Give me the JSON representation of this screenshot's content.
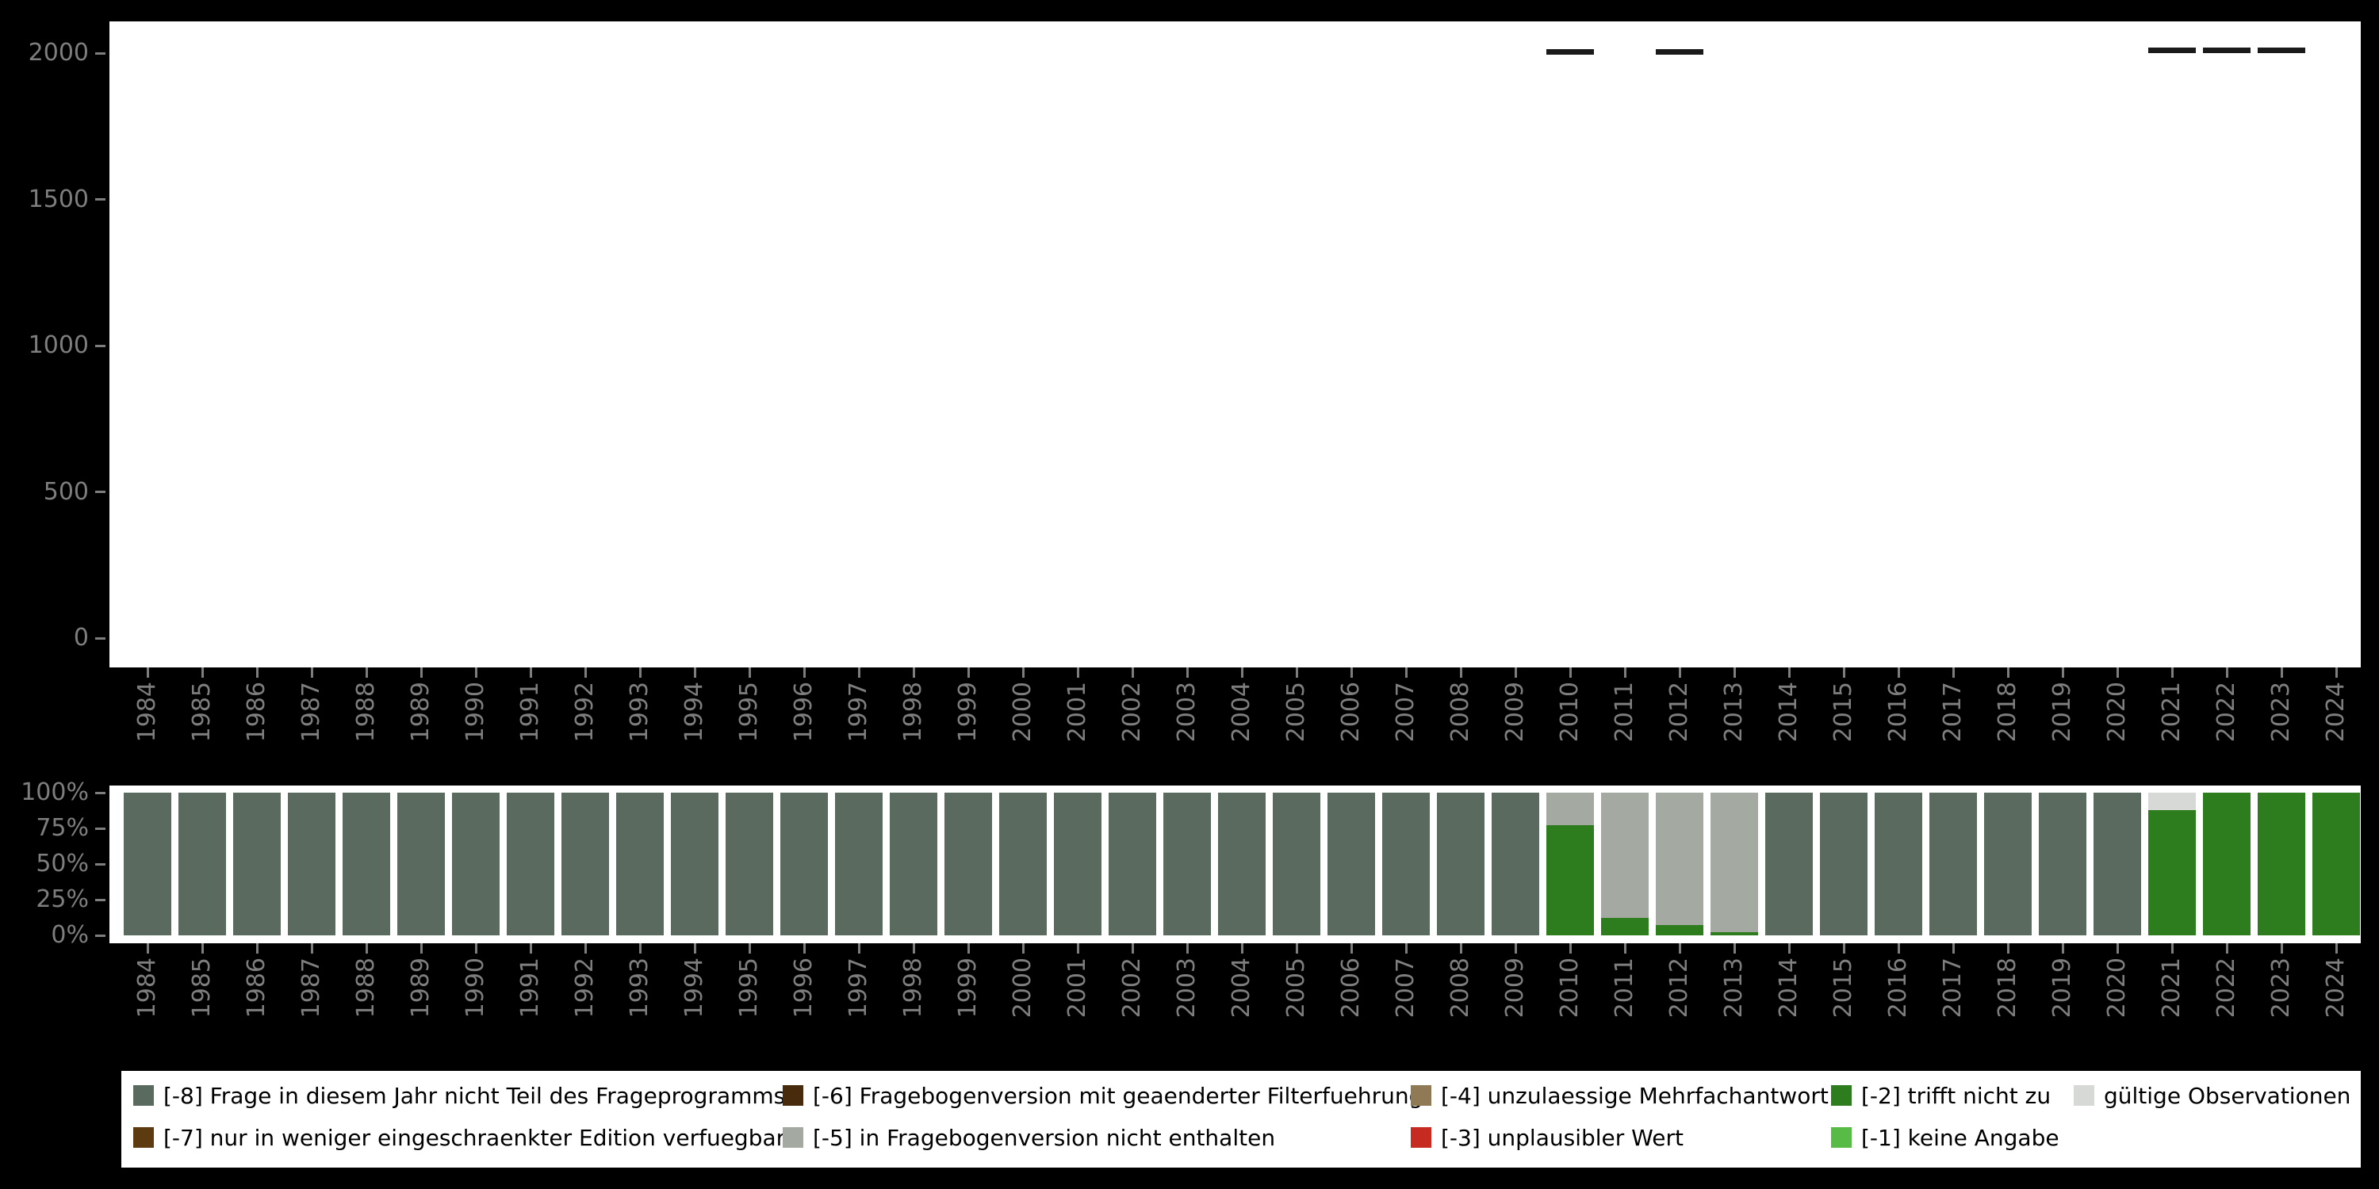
{
  "colors": {
    "background": "#000000",
    "panel": "#ffffff",
    "axis_text": "#7e7e7e",
    "tick": "#7e7e7e",
    "count_dash": "#1a1a1a",
    "legend_background": "#ffffff",
    "legend_text": "#000000"
  },
  "codes": {
    "m8": {
      "label": "[-8] Frage in diesem Jahr nicht Teil des Frageprogramms",
      "color": "#5b6a5f"
    },
    "m7": {
      "label": "[-7] nur in weniger eingeschraenkter Edition verfuegbar",
      "color": "#5e3a10"
    },
    "m6": {
      "label": "[-6] Fragebogenversion mit geaenderter Filterfuehrung",
      "color": "#472b0c"
    },
    "m5": {
      "label": "[-5] in Fragebogenversion nicht enthalten",
      "color": "#a4aaa2"
    },
    "m4": {
      "label": "[-4] unzulaessige Mehrfachantwort",
      "color": "#8f7a55"
    },
    "m3": {
      "label": "[-3] unplausibler Wert",
      "color": "#c62b22"
    },
    "m2": {
      "label": "[-2] trifft nicht zu",
      "color": "#2d7c1e"
    },
    "m1": {
      "label": "[-1] keine Angabe",
      "color": "#58bb46"
    },
    "valid": {
      "label": "gültige Observationen",
      "color": "#d6d9d5"
    }
  },
  "legend": {
    "rows": [
      [
        "m8",
        "m6",
        "m4",
        "m2",
        "valid"
      ],
      [
        "m7",
        "m5",
        "m3",
        "m1"
      ]
    ]
  },
  "axes": {
    "years": [
      "1984",
      "1985",
      "1986",
      "1987",
      "1988",
      "1989",
      "1990",
      "1991",
      "1992",
      "1993",
      "1994",
      "1995",
      "1996",
      "1997",
      "1998",
      "1999",
      "2000",
      "2001",
      "2002",
      "2003",
      "2004",
      "2005",
      "2006",
      "2007",
      "2008",
      "2009",
      "2010",
      "2011",
      "2012",
      "2013",
      "2014",
      "2015",
      "2016",
      "2017",
      "2018",
      "2019",
      "2020",
      "2021",
      "2022",
      "2023",
      "2024"
    ],
    "top_y": [
      {
        "label": "2000",
        "value": 2000
      },
      {
        "label": "1500",
        "value": 1500
      },
      {
        "label": "1000",
        "value": 1000
      },
      {
        "label": "500",
        "value": 500
      },
      {
        "label": "0",
        "value": 0
      }
    ],
    "bottom_y": [
      {
        "label": "100%",
        "value": 100
      },
      {
        "label": "75%",
        "value": 75
      },
      {
        "label": "50%",
        "value": 50
      },
      {
        "label": "25%",
        "value": 25
      },
      {
        "label": "0%",
        "value": 0
      }
    ]
  },
  "chart_data": [
    {
      "type": "bar",
      "mark": "dash",
      "title": "",
      "xlabel": "",
      "ylabel": "",
      "x": [
        1984,
        1985,
        1986,
        1987,
        1988,
        1989,
        1990,
        1991,
        1992,
        1993,
        1994,
        1995,
        1996,
        1997,
        1998,
        1999,
        2000,
        2001,
        2002,
        2003,
        2004,
        2005,
        2006,
        2007,
        2008,
        2009,
        2010,
        2011,
        2012,
        2013,
        2014,
        2015,
        2016,
        2017,
        2018,
        2019,
        2020,
        2021,
        2022,
        2023,
        2024
      ],
      "values": [
        null,
        null,
        null,
        null,
        null,
        null,
        null,
        null,
        null,
        null,
        null,
        null,
        null,
        null,
        null,
        null,
        null,
        null,
        null,
        null,
        null,
        null,
        null,
        null,
        null,
        null,
        2005,
        null,
        2005,
        null,
        null,
        null,
        null,
        null,
        null,
        null,
        null,
        2010,
        2010,
        2010,
        null
      ],
      "ylim": [
        0,
        2100
      ],
      "yticks": [
        0,
        500,
        1000,
        1500,
        2000
      ],
      "grid": false,
      "legend_position": "none"
    },
    {
      "type": "bar",
      "stacked": true,
      "units": "percent",
      "stack": "bottom-to-top in listed series order",
      "title": "",
      "xlabel": "",
      "ylabel": "",
      "categories": [
        1984,
        1985,
        1986,
        1987,
        1988,
        1989,
        1990,
        1991,
        1992,
        1993,
        1994,
        1995,
        1996,
        1997,
        1998,
        1999,
        2000,
        2001,
        2002,
        2003,
        2004,
        2005,
        2006,
        2007,
        2008,
        2009,
        2010,
        2011,
        2012,
        2013,
        2014,
        2015,
        2016,
        2017,
        2018,
        2019,
        2020,
        2021,
        2022,
        2023,
        2024
      ],
      "series": [
        {
          "name": "[-2] trifft nicht zu",
          "code": "m2",
          "color": "#2d7c1e",
          "values": [
            0,
            0,
            0,
            0,
            0,
            0,
            0,
            0,
            0,
            0,
            0,
            0,
            0,
            0,
            0,
            0,
            0,
            0,
            0,
            0,
            0,
            0,
            0,
            0,
            0,
            0,
            77,
            12,
            7,
            2,
            0,
            0,
            0,
            0,
            0,
            0,
            0,
            88,
            100,
            100,
            100
          ]
        },
        {
          "name": "[-5] in Fragebogenversion nicht enthalten",
          "code": "m5",
          "color": "#a4aaa2",
          "values": [
            0,
            0,
            0,
            0,
            0,
            0,
            0,
            0,
            0,
            0,
            0,
            0,
            0,
            0,
            0,
            0,
            0,
            0,
            0,
            0,
            0,
            0,
            0,
            0,
            0,
            0,
            23,
            88,
            93,
            98,
            0,
            0,
            0,
            0,
            0,
            0,
            0,
            0,
            0,
            0,
            0
          ]
        },
        {
          "name": "gültige Observationen",
          "code": "valid",
          "color": "#d6d9d5",
          "values": [
            0,
            0,
            0,
            0,
            0,
            0,
            0,
            0,
            0,
            0,
            0,
            0,
            0,
            0,
            0,
            0,
            0,
            0,
            0,
            0,
            0,
            0,
            0,
            0,
            0,
            0,
            0,
            0,
            0,
            0,
            0,
            0,
            0,
            0,
            0,
            0,
            0,
            12,
            0,
            0,
            0
          ]
        },
        {
          "name": "[-8] Frage in diesem Jahr nicht Teil des Frageprogramms",
          "code": "m8",
          "color": "#5b6a5f",
          "values": [
            100,
            100,
            100,
            100,
            100,
            100,
            100,
            100,
            100,
            100,
            100,
            100,
            100,
            100,
            100,
            100,
            100,
            100,
            100,
            100,
            100,
            100,
            100,
            100,
            100,
            100,
            0,
            0,
            0,
            0,
            100,
            100,
            100,
            100,
            100,
            100,
            100,
            0,
            0,
            0,
            0
          ]
        }
      ],
      "ylim": [
        0,
        100
      ],
      "yticks": [
        "0%",
        "25%",
        "50%",
        "75%",
        "100%"
      ],
      "grid": false,
      "legend_position": "bottom"
    }
  ]
}
